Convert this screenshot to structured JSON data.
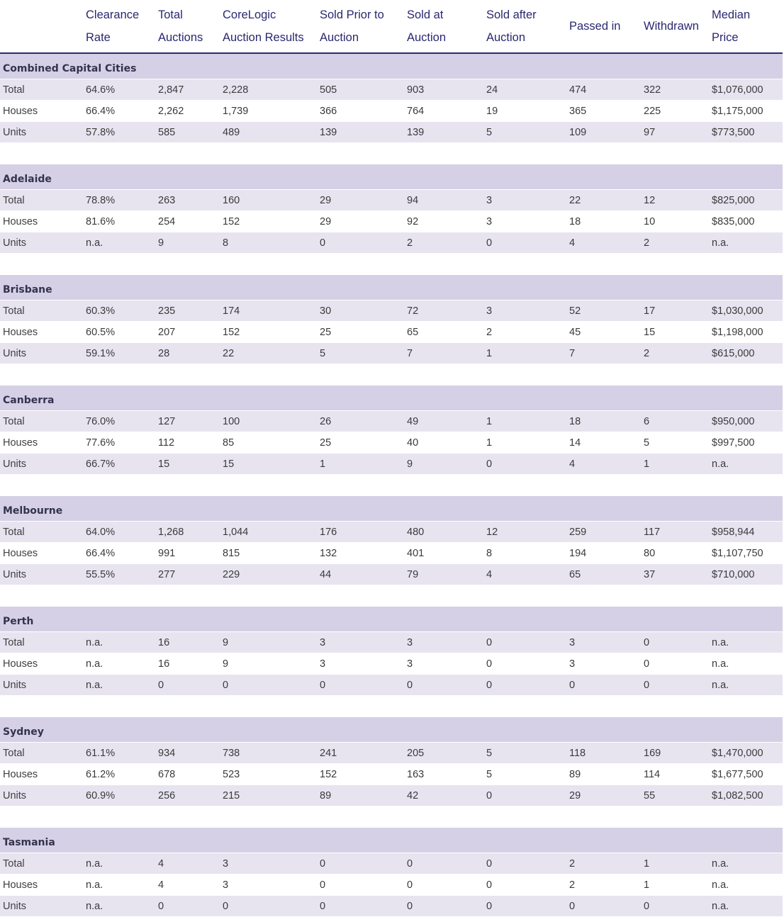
{
  "header": [
    [
      "",
      ""
    ],
    [
      "Clearance",
      "Rate"
    ],
    [
      "Total",
      "Auctions"
    ],
    [
      "CoreLogic",
      "Auction Results"
    ],
    [
      "Sold Prior to",
      "Auction"
    ],
    [
      "Sold at",
      "Auction"
    ],
    [
      "Sold after",
      "Auction"
    ],
    [
      "Passed in"
    ],
    [
      "Withdrawn"
    ],
    [
      "Median",
      "Price"
    ]
  ],
  "groups": [
    {
      "city": "Combined Capital Cities",
      "rows": [
        [
          "Total",
          "64.6%",
          "2,847",
          "2,228",
          "505",
          "903",
          "24",
          "474",
          "322",
          "$1,076,000"
        ],
        [
          "Houses",
          "66.4%",
          "2,262",
          "1,739",
          "366",
          "764",
          "19",
          "365",
          "225",
          "$1,175,000"
        ],
        [
          "Units",
          "57.8%",
          "585",
          "489",
          "139",
          "139",
          "5",
          "109",
          "97",
          "$773,500"
        ]
      ]
    },
    {
      "city": "Adelaide",
      "rows": [
        [
          "Total",
          "78.8%",
          "263",
          "160",
          "29",
          "94",
          "3",
          "22",
          "12",
          "$825,000"
        ],
        [
          "Houses",
          "81.6%",
          "254",
          "152",
          "29",
          "92",
          "3",
          "18",
          "10",
          "$835,000"
        ],
        [
          "Units",
          "n.a.",
          "9",
          "8",
          "0",
          "2",
          "0",
          "4",
          "2",
          "n.a."
        ]
      ]
    },
    {
      "city": "Brisbane",
      "rows": [
        [
          "Total",
          "60.3%",
          "235",
          "174",
          "30",
          "72",
          "3",
          "52",
          "17",
          "$1,030,000"
        ],
        [
          "Houses",
          "60.5%",
          "207",
          "152",
          "25",
          "65",
          "2",
          "45",
          "15",
          "$1,198,000"
        ],
        [
          "Units",
          "59.1%",
          "28",
          "22",
          "5",
          "7",
          "1",
          "7",
          "2",
          "$615,000"
        ]
      ]
    },
    {
      "city": "Canberra",
      "rows": [
        [
          "Total",
          "76.0%",
          "127",
          "100",
          "26",
          "49",
          "1",
          "18",
          "6",
          "$950,000"
        ],
        [
          "Houses",
          "77.6%",
          "112",
          "85",
          "25",
          "40",
          "1",
          "14",
          "5",
          "$997,500"
        ],
        [
          "Units",
          "66.7%",
          "15",
          "15",
          "1",
          "9",
          "0",
          "4",
          "1",
          "n.a."
        ]
      ]
    },
    {
      "city": "Melbourne",
      "rows": [
        [
          "Total",
          "64.0%",
          "1,268",
          "1,044",
          "176",
          "480",
          "12",
          "259",
          "117",
          "$958,944"
        ],
        [
          "Houses",
          "66.4%",
          "991",
          "815",
          "132",
          "401",
          "8",
          "194",
          "80",
          "$1,107,750"
        ],
        [
          "Units",
          "55.5%",
          "277",
          "229",
          "44",
          "79",
          "4",
          "65",
          "37",
          "$710,000"
        ]
      ]
    },
    {
      "city": "Perth",
      "rows": [
        [
          "Total",
          "n.a.",
          "16",
          "9",
          "3",
          "3",
          "0",
          "3",
          "0",
          "n.a."
        ],
        [
          "Houses",
          "n.a.",
          "16",
          "9",
          "3",
          "3",
          "0",
          "3",
          "0",
          "n.a."
        ],
        [
          "Units",
          "n.a.",
          "0",
          "0",
          "0",
          "0",
          "0",
          "0",
          "0",
          "n.a."
        ]
      ]
    },
    {
      "city": "Sydney",
      "rows": [
        [
          "Total",
          "61.1%",
          "934",
          "738",
          "241",
          "205",
          "5",
          "118",
          "169",
          "$1,470,000"
        ],
        [
          "Houses",
          "61.2%",
          "678",
          "523",
          "152",
          "163",
          "5",
          "89",
          "114",
          "$1,677,500"
        ],
        [
          "Units",
          "60.9%",
          "256",
          "215",
          "89",
          "42",
          "0",
          "29",
          "55",
          "$1,082,500"
        ]
      ]
    },
    {
      "city": "Tasmania",
      "rows": [
        [
          "Total",
          "n.a.",
          "4",
          "3",
          "0",
          "0",
          "0",
          "2",
          "1",
          "n.a."
        ],
        [
          "Houses",
          "n.a.",
          "4",
          "3",
          "0",
          "0",
          "0",
          "2",
          "1",
          "n.a."
        ],
        [
          "Units",
          "n.a.",
          "0",
          "0",
          "0",
          "0",
          "0",
          "0",
          "0",
          "n.a."
        ]
      ]
    }
  ]
}
